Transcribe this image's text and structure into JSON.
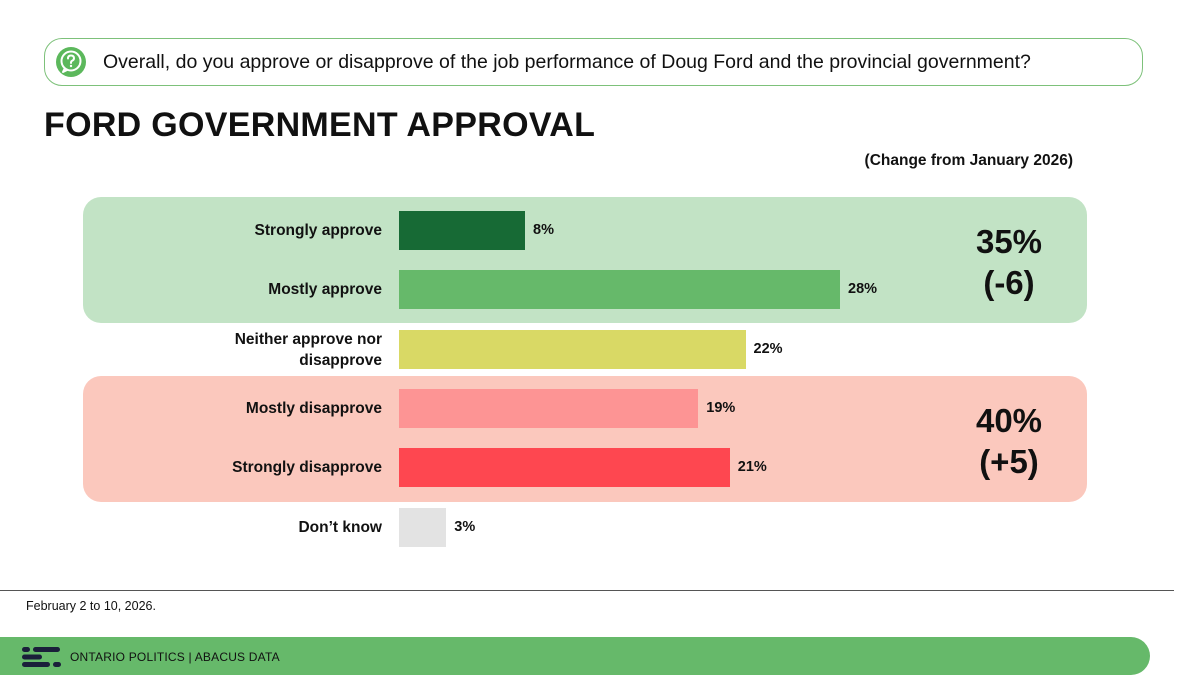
{
  "question": "Overall, do you approve or disapprove of the job performance of Doug Ford and the provincial government?",
  "title": "FORD GOVERNMENT APPROVAL",
  "change_note": "(Change from January 2026)",
  "groups": {
    "approve": {
      "total": "35%",
      "change": "(-6)",
      "color": "#c2e3c5"
    },
    "disapprove": {
      "total": "40%",
      "change": "(+5)",
      "color": "#fbc8bd"
    }
  },
  "chart_data": {
    "type": "bar",
    "orientation": "horizontal",
    "title": "FORD GOVERNMENT APPROVAL",
    "categories": [
      "Strongly approve",
      "Mostly approve",
      "Neither approve nor disapprove",
      "Mostly disapprove",
      "Strongly disapprove",
      "Don’t know"
    ],
    "values": [
      8,
      28,
      22,
      19,
      21,
      3
    ],
    "value_labels": [
      "8%",
      "28%",
      "22%",
      "19%",
      "21%",
      "3%"
    ],
    "colors": [
      "#176a35",
      "#66b96a",
      "#d9d965",
      "#fd9494",
      "#fe4750",
      "#e3e3e3"
    ],
    "grid": false,
    "legend": "none"
  },
  "date_note": "February 2 to 10, 2026.",
  "footer": "ONTARIO POLITICS  |  ABACUS DATA",
  "icons": {
    "question": "question-bubble-icon",
    "logo": "abacus-logo-icon"
  },
  "accent_color": "#66b96a"
}
